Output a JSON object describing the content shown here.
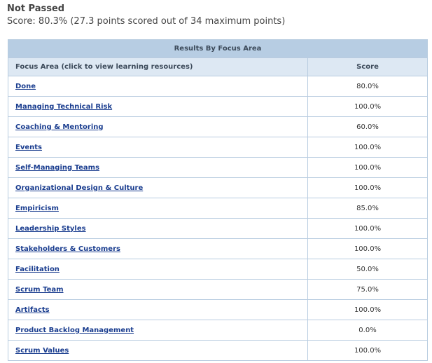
{
  "result": {
    "status": "Not Passed",
    "score_line": "Score: 80.3% (27.3 points scored out of 34 maximum points)"
  },
  "table": {
    "caption": "Results By Focus Area",
    "headers": {
      "focus_area": "Focus Area (click to view learning resources)",
      "score": "Score"
    },
    "rows": [
      {
        "area": "Done",
        "score": "80.0%"
      },
      {
        "area": "Managing Technical Risk",
        "score": "100.0%"
      },
      {
        "area": "Coaching & Mentoring",
        "score": "60.0%"
      },
      {
        "area": "Events",
        "score": "100.0%"
      },
      {
        "area": "Self-Managing Teams",
        "score": "100.0%"
      },
      {
        "area": "Organizational Design & Culture",
        "score": "100.0%"
      },
      {
        "area": "Empiricism",
        "score": "85.0%"
      },
      {
        "area": "Leadership Styles",
        "score": "100.0%"
      },
      {
        "area": "Stakeholders & Customers",
        "score": "100.0%"
      },
      {
        "area": "Facilitation",
        "score": "50.0%"
      },
      {
        "area": "Scrum Team",
        "score": "75.0%"
      },
      {
        "area": "Artifacts",
        "score": "100.0%"
      },
      {
        "area": "Product Backlog Management",
        "score": "0.0%"
      },
      {
        "area": "Scrum Values",
        "score": "100.0%"
      }
    ]
  },
  "colors": {
    "caption_bg": "#b7cde3",
    "header_bg": "#dde8f3",
    "border": "#b8cce0",
    "link": "#1a3d8f"
  }
}
